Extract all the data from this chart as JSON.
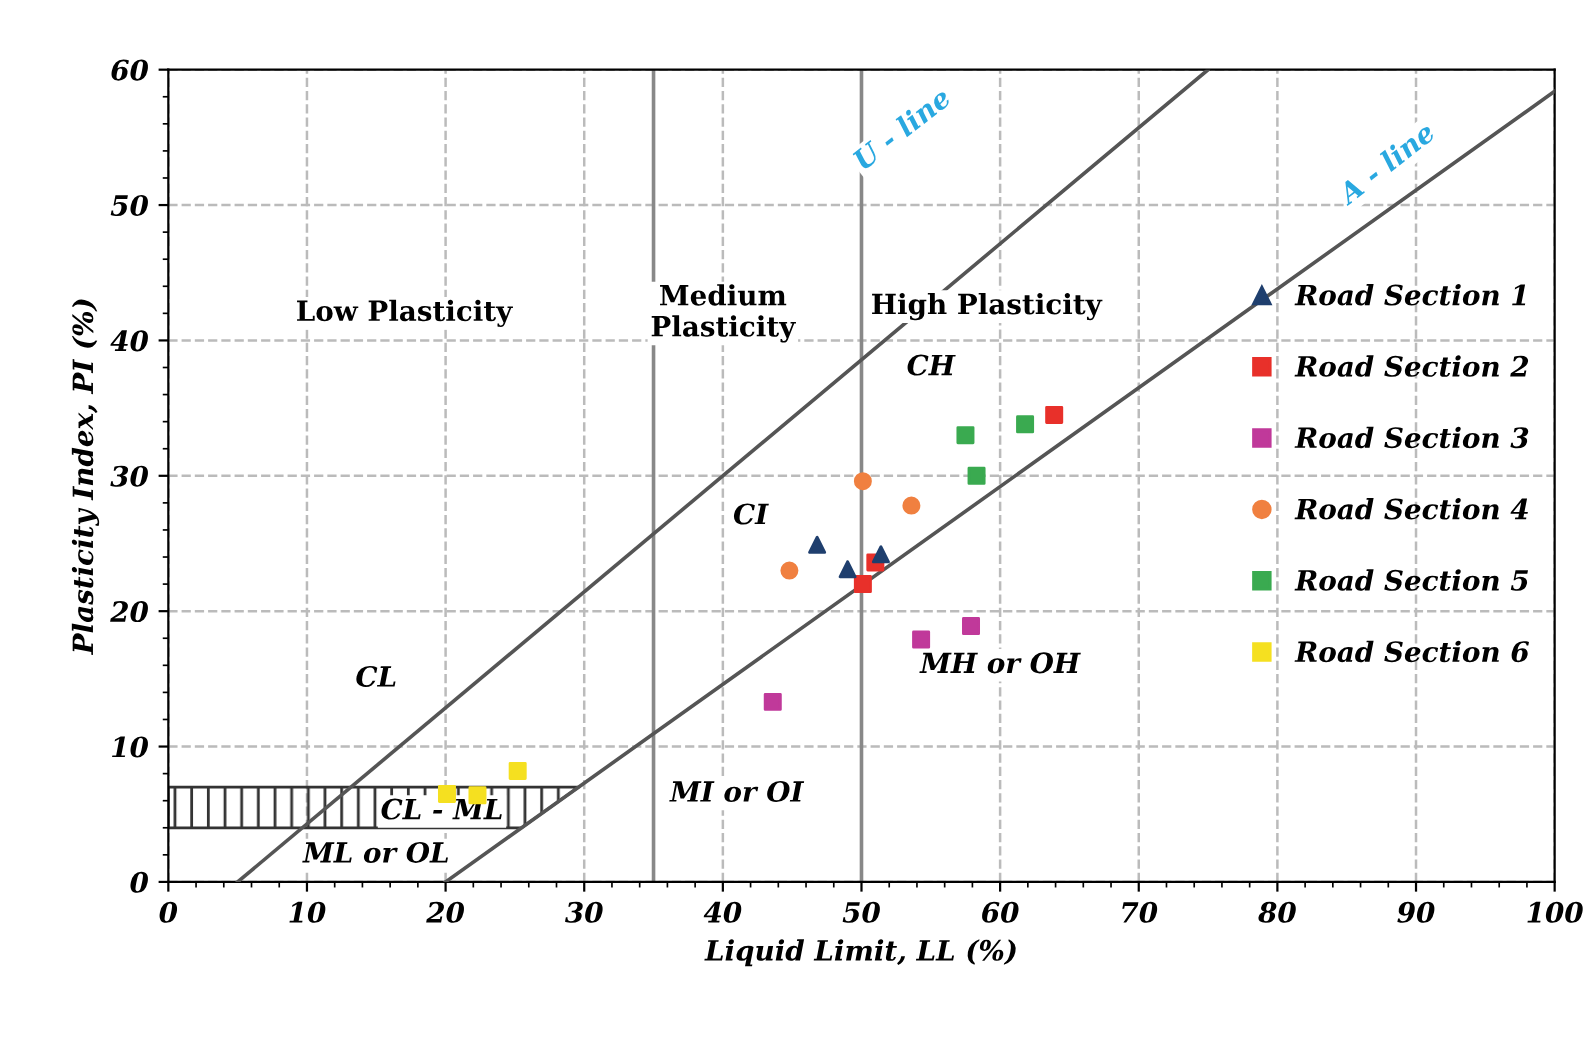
{
  "chart_data": {
    "type": "scatter",
    "xlabel": "Liquid Limit, LL (%)",
    "ylabel": "Plasticity Index, PI (%)",
    "xlim": [
      0,
      100
    ],
    "ylim": [
      0,
      60
    ],
    "xticks": [
      0,
      10,
      20,
      30,
      40,
      50,
      60,
      70,
      80,
      90,
      100
    ],
    "yticks": [
      0,
      10,
      20,
      30,
      40,
      50,
      60
    ],
    "grid": true,
    "legend": "right",
    "series": [
      {
        "name": "Road Section 1",
        "color": "#1f3f6e",
        "marker": "triangle",
        "x": [
          46.8,
          49.0,
          51.4
        ],
        "values": [
          24.9,
          23.1,
          24.2
        ]
      },
      {
        "name": "Road Section 2",
        "color": "#e8302a",
        "marker": "square",
        "x": [
          63.9,
          51.0,
          50.1
        ],
        "values": [
          34.5,
          23.6,
          22.0
        ]
      },
      {
        "name": "Road Section 3",
        "color": "#c0399a",
        "marker": "square",
        "x": [
          57.9,
          54.3,
          43.6
        ],
        "values": [
          18.9,
          17.9,
          13.3
        ]
      },
      {
        "name": "Road Section 4",
        "color": "#f08040",
        "marker": "circle",
        "x": [
          50.1,
          53.6,
          44.8
        ],
        "values": [
          29.6,
          27.8,
          23.0
        ]
      },
      {
        "name": "Road Section 5",
        "color": "#3aaa50",
        "marker": "square",
        "x": [
          57.5,
          61.8,
          58.3
        ],
        "values": [
          33.0,
          33.8,
          30.0
        ]
      },
      {
        "name": "Road Section 6",
        "color": "#f5e020",
        "marker": "square",
        "x": [
          20.1,
          22.3,
          25.2
        ],
        "values": [
          6.5,
          6.4,
          8.2
        ]
      },
      {
        "type": "line",
        "color": "#555555",
        "x": [
          5,
          75
        ],
        "values": [
          0,
          60
        ]
      },
      {
        "type": "line",
        "color": "#555555",
        "x": [
          20,
          100
        ],
        "values": [
          0,
          58.4
        ]
      }
    ],
    "ref_lines": [
      {
        "axis": "x",
        "value": 35,
        "color": "#888888"
      },
      {
        "axis": "x",
        "value": 50,
        "color": "#888888"
      }
    ],
    "bands": [
      {
        "axis": "y",
        "from": 4,
        "to": 7,
        "label": "CL - ML"
      }
    ],
    "annotations": [
      "Low Plasticity",
      "Medium\nPlasticity",
      "High Plasticity",
      "CH",
      "CI",
      "CL",
      "ML or OL",
      "MI or OI",
      "MH or OH",
      "U - line",
      "A - line"
    ]
  }
}
